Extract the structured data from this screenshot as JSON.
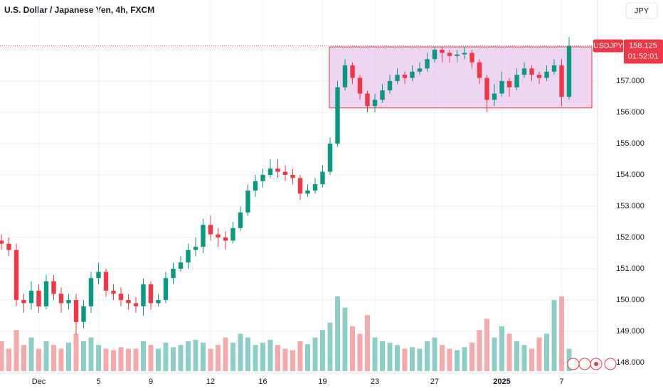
{
  "chart_data": {
    "type": "candlestick",
    "title": "U.S. Dollar / Japanese Yen, 4h, FXCM",
    "currency": "JPY",
    "categories": [
      null,
      null,
      null,
      null,
      null,
      "Dec",
      null,
      null,
      null,
      null,
      null,
      null,
      null,
      "5",
      null,
      null,
      null,
      null,
      null,
      null,
      "9",
      null,
      null,
      null,
      null,
      null,
      null,
      null,
      "12",
      null,
      null,
      null,
      null,
      null,
      null,
      "16",
      null,
      null,
      null,
      null,
      null,
      null,
      null,
      "19",
      null,
      null,
      null,
      null,
      null,
      null,
      "23",
      null,
      null,
      null,
      null,
      null,
      null,
      null,
      "27",
      null,
      null,
      null,
      null,
      null,
      null,
      null,
      null,
      "2025",
      null,
      null,
      null,
      null,
      null,
      null,
      null,
      "7",
      null
    ],
    "open": [
      151.9,
      151.8,
      151.6,
      150.0,
      149.9,
      150.3,
      149.8,
      150.6,
      150.2,
      149.9,
      150.0,
      149.3,
      149.8,
      150.7,
      150.9,
      150.3,
      150.2,
      150.0,
      149.9,
      149.8,
      150.5,
      149.9,
      150.0,
      150.7,
      151.0,
      151.2,
      151.6,
      151.7,
      152.4,
      152.1,
      152.0,
      151.9,
      152.3,
      152.8,
      153.5,
      153.8,
      154.0,
      154.2,
      154.1,
      154.0,
      153.9,
      153.4,
      153.5,
      153.7,
      154.1,
      155.0,
      156.8,
      157.5,
      157.1,
      156.6,
      156.2,
      156.4,
      156.7,
      157.0,
      157.2,
      157.1,
      157.3,
      157.4,
      157.7,
      158.0,
      157.9,
      157.8,
      157.85,
      157.9,
      157.6,
      157.1,
      156.4,
      156.6,
      157.0,
      156.8,
      157.2,
      157.4,
      157.2,
      157.1,
      157.3,
      157.5,
      156.5
    ],
    "high": [
      152.1,
      152.0,
      151.8,
      150.2,
      150.6,
      150.5,
      150.8,
      150.8,
      150.4,
      150.2,
      150.2,
      150.0,
      150.9,
      151.2,
      151.0,
      150.5,
      150.4,
      150.2,
      150.1,
      150.7,
      150.6,
      150.2,
      150.9,
      151.2,
      151.4,
      151.8,
      152.0,
      152.6,
      152.7,
      152.3,
      152.2,
      152.5,
      153.0,
      153.7,
      154.0,
      154.2,
      154.5,
      154.5,
      154.3,
      154.2,
      154.0,
      153.7,
      153.9,
      154.3,
      155.2,
      157.0,
      157.7,
      157.6,
      157.2,
      156.7,
      156.6,
      156.9,
      157.2,
      157.4,
      157.3,
      157.5,
      157.6,
      157.9,
      158.1,
      158.1,
      158.0,
      158.0,
      158.1,
      158.0,
      157.7,
      157.2,
      156.9,
      157.3,
      157.1,
      157.4,
      157.6,
      157.5,
      157.3,
      157.5,
      157.7,
      157.7,
      158.4
    ],
    "low": [
      151.6,
      151.4,
      149.8,
      149.6,
      149.7,
      149.6,
      149.7,
      150.0,
      149.6,
      149.7,
      148.9,
      149.1,
      149.6,
      150.5,
      150.1,
      150.0,
      149.8,
      149.7,
      149.6,
      149.5,
      149.7,
      149.8,
      149.9,
      150.5,
      150.9,
      151.0,
      151.4,
      151.5,
      151.9,
      151.7,
      151.6,
      151.8,
      152.2,
      152.7,
      153.3,
      153.6,
      153.9,
      153.9,
      153.8,
      153.7,
      153.2,
      153.3,
      153.4,
      153.6,
      154.0,
      154.9,
      156.7,
      156.9,
      156.4,
      156.0,
      156.0,
      156.3,
      156.6,
      156.9,
      156.9,
      157.0,
      157.2,
      157.3,
      157.6,
      157.6,
      157.6,
      157.6,
      157.7,
      157.4,
      156.9,
      156.0,
      156.2,
      156.5,
      156.5,
      156.7,
      157.1,
      157.0,
      156.9,
      157.0,
      157.2,
      156.2,
      156.4
    ],
    "close": [
      151.8,
      151.6,
      150.0,
      149.9,
      150.3,
      149.8,
      150.6,
      150.2,
      149.9,
      150.0,
      149.3,
      149.8,
      150.7,
      150.9,
      150.3,
      150.2,
      150.0,
      149.9,
      149.8,
      150.5,
      149.9,
      150.0,
      150.7,
      151.0,
      151.2,
      151.6,
      151.7,
      152.4,
      152.1,
      152.0,
      151.9,
      152.3,
      152.8,
      153.5,
      153.8,
      154.0,
      154.2,
      154.1,
      154.0,
      153.9,
      153.4,
      153.5,
      153.7,
      154.1,
      155.0,
      156.8,
      157.5,
      157.1,
      156.6,
      156.2,
      156.4,
      156.7,
      157.0,
      157.2,
      157.1,
      157.3,
      157.4,
      157.7,
      158.0,
      157.9,
      157.8,
      157.85,
      157.9,
      157.6,
      157.1,
      156.4,
      156.6,
      157.0,
      156.8,
      157.2,
      157.4,
      157.2,
      157.1,
      157.3,
      157.5,
      156.5,
      158.125
    ],
    "volume": [
      40,
      30,
      55,
      35,
      45,
      30,
      40,
      35,
      30,
      38,
      50,
      40,
      45,
      35,
      30,
      28,
      32,
      30,
      30,
      40,
      35,
      30,
      38,
      32,
      35,
      40,
      42,
      38,
      30,
      35,
      45,
      38,
      50,
      45,
      35,
      38,
      42,
      35,
      30,
      28,
      40,
      36,
      45,
      55,
      65,
      100,
      85,
      60,
      50,
      75,
      45,
      40,
      38,
      35,
      30,
      32,
      30,
      40,
      45,
      35,
      30,
      28,
      32,
      38,
      55,
      70,
      45,
      60,
      50,
      40,
      35,
      30,
      45,
      50,
      95,
      100,
      30
    ],
    "up_color": "#089981",
    "down_color": "#f23645",
    "volume_up_color": "#8ccfc8",
    "volume_down_color": "#f6a9ab",
    "ylim": [
      147.66,
      159.59
    ],
    "yticks": [
      {
        "value": 148,
        "label": "148.000"
      },
      {
        "value": 149,
        "label": "149.000"
      },
      {
        "value": 150,
        "label": "150.000"
      },
      {
        "value": 151,
        "label": "151.000"
      },
      {
        "value": 152,
        "label": "152.000"
      },
      {
        "value": 153,
        "label": "153.000"
      },
      {
        "value": 154,
        "label": "154.000"
      },
      {
        "value": 155,
        "label": "155.000"
      },
      {
        "value": 156,
        "label": "156.000"
      },
      {
        "value": 157,
        "label": "157.000"
      }
    ],
    "grid": true,
    "box": {
      "top": 158.09,
      "bottom": 156.14,
      "color": "#e0b3e6"
    },
    "price_label": {
      "symbol": "USDJPY",
      "value": 158.125,
      "label": "158.125",
      "countdown": "01:52:01"
    }
  }
}
